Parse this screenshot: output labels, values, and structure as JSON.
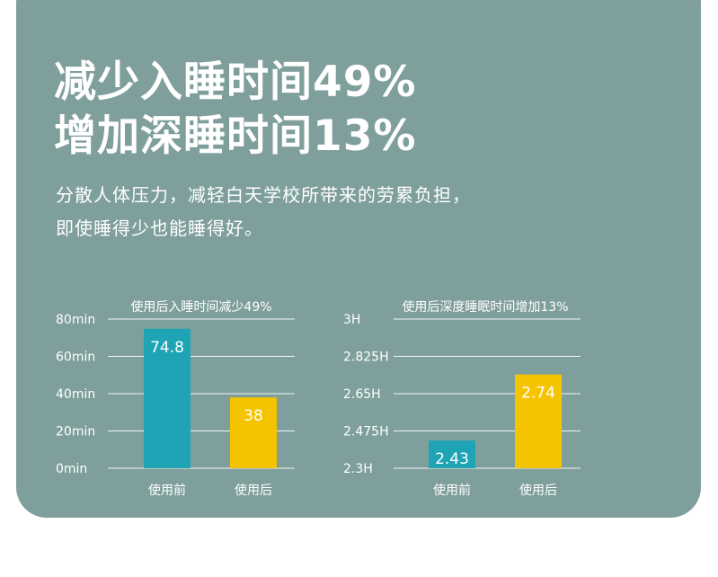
{
  "headline": {
    "line1": "减少入睡时间49%",
    "line2": "增加深睡时间13%"
  },
  "description": {
    "line1": "分散人体压力，减轻白天学校所带来的劳累负担，",
    "line2": "即使睡得少也能睡得好。"
  },
  "colors": {
    "background": "#7f9f9c",
    "bar_before": "#1ea4b4",
    "bar_after": "#f5c400",
    "text": "#ffffff"
  },
  "chart_data": [
    {
      "type": "bar",
      "title": "使用后入睡时间减少49%",
      "categories": [
        "使用前",
        "使用后"
      ],
      "values": [
        74.8,
        38
      ],
      "value_labels": [
        "74.8",
        "38"
      ],
      "ylim": [
        0,
        80
      ],
      "yticks": [
        0,
        20,
        40,
        60,
        80
      ],
      "ytick_labels": [
        "0min",
        "20min",
        "40min",
        "60min",
        "80min"
      ],
      "grid": true
    },
    {
      "type": "bar",
      "title": "使用后深度睡眠时间增加13%",
      "categories": [
        "使用前",
        "使用后"
      ],
      "values": [
        2.43,
        2.74
      ],
      "value_labels": [
        "2.43",
        "2.74"
      ],
      "ylim": [
        2.3,
        3
      ],
      "yticks": [
        2.3,
        2.475,
        2.65,
        2.825,
        3
      ],
      "ytick_labels": [
        "2.3H",
        "2.475H",
        "2.65H",
        "2.825H",
        "3H"
      ],
      "grid": true
    }
  ]
}
